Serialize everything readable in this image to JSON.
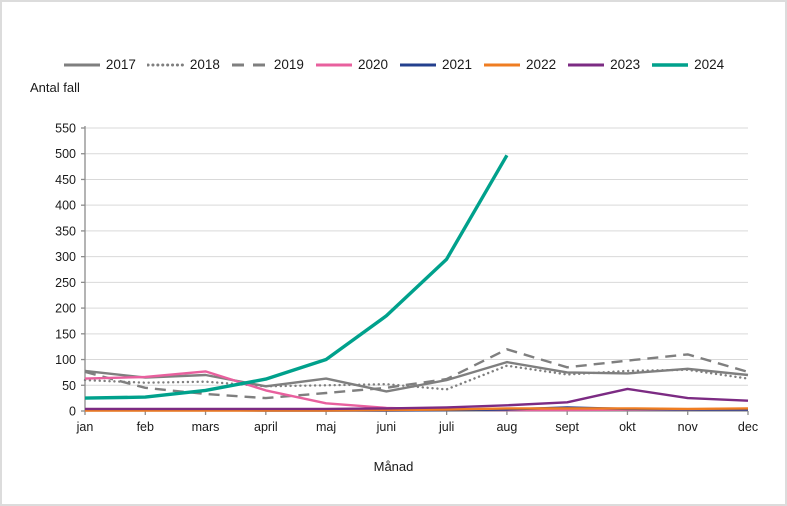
{
  "page": {
    "background": "#ffffff",
    "border_color": "#dcdcdc"
  },
  "chart_data": {
    "type": "line",
    "title": "",
    "ylabel": "Antal fall",
    "xlabel": "Månad",
    "ylim": [
      0,
      550
    ],
    "yticks": [
      0,
      50,
      100,
      150,
      200,
      250,
      300,
      350,
      400,
      450,
      500,
      550
    ],
    "categories": [
      "jan",
      "feb",
      "mars",
      "april",
      "maj",
      "juni",
      "juli",
      "aug",
      "sept",
      "okt",
      "nov",
      "dec"
    ],
    "grid": "horizontal",
    "gridline_color": "#d9d9d9",
    "axis_color": "#8c8c8c",
    "text_color": "#1a1a1a",
    "legend_position": "top",
    "series": [
      {
        "name": "2017",
        "color": "#7f7f7f",
        "line_style": "solid",
        "line_width": 2.4,
        "values": [
          78,
          65,
          70,
          48,
          63,
          38,
          60,
          95,
          75,
          73,
          82,
          70
        ]
      },
      {
        "name": "2018",
        "color": "#7f7f7f",
        "line_style": "dotted",
        "line_width": 2.4,
        "values": [
          60,
          55,
          57,
          48,
          50,
          52,
          42,
          88,
          71,
          78,
          80,
          63
        ]
      },
      {
        "name": "2019",
        "color": "#7f7f7f",
        "line_style": "dashed",
        "line_width": 2.4,
        "values": [
          76,
          45,
          33,
          25,
          35,
          45,
          62,
          120,
          85,
          98,
          110,
          76
        ]
      },
      {
        "name": "2020",
        "color": "#e8609e",
        "line_style": "solid",
        "line_width": 2.4,
        "values": [
          63,
          66,
          77,
          40,
          15,
          6,
          3,
          2,
          2,
          3,
          3,
          3
        ]
      },
      {
        "name": "2021",
        "color": "#24408e",
        "line_style": "solid",
        "line_width": 2.4,
        "values": [
          2,
          2,
          2,
          1,
          1,
          1,
          2,
          3,
          7,
          4,
          3,
          3
        ]
      },
      {
        "name": "2022",
        "color": "#ef7d22",
        "line_style": "solid",
        "line_width": 2.4,
        "values": [
          1,
          1,
          1,
          1,
          1,
          2,
          3,
          5,
          5,
          5,
          4,
          5
        ]
      },
      {
        "name": "2023",
        "color": "#7c2b83",
        "line_style": "solid",
        "line_width": 2.4,
        "values": [
          4,
          4,
          4,
          4,
          4,
          5,
          7,
          11,
          17,
          43,
          25,
          20
        ]
      },
      {
        "name": "2024",
        "color": "#00a18c",
        "line_style": "solid",
        "line_width": 3.4,
        "values": [
          25,
          27,
          40,
          62,
          100,
          185,
          295,
          497,
          null,
          null,
          null,
          null
        ]
      }
    ]
  }
}
